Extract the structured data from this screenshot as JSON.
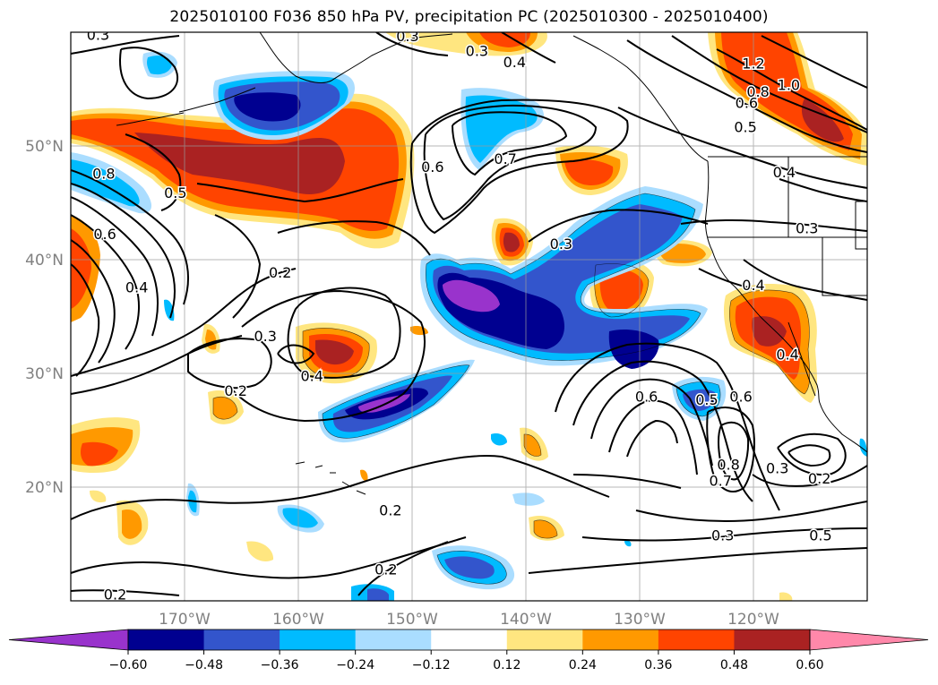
{
  "title": "2025010100 F036 850 hPa PV, precipitation PC (2025010300 - 2025010400)",
  "map": {
    "projection": "PlateCarree",
    "lon_range": [
      -180,
      -110
    ],
    "lat_range": [
      10,
      60
    ],
    "gridlines": true,
    "coastlines": true,
    "land_color": "#ffffff"
  },
  "lat_labels": [
    {
      "lat": 50,
      "text": "50°N"
    },
    {
      "lat": 40,
      "text": "40°N"
    },
    {
      "lat": 30,
      "text": "30°N"
    },
    {
      "lat": 20,
      "text": "20°N"
    }
  ],
  "lon_labels": [
    {
      "lon": -170,
      "text": "170°W"
    },
    {
      "lon": -160,
      "text": "160°W"
    },
    {
      "lon": -150,
      "text": "150°W"
    },
    {
      "lon": -140,
      "text": "140°W"
    },
    {
      "lon": -130,
      "text": "130°W"
    },
    {
      "lon": -120,
      "text": "120°W"
    }
  ],
  "colorbar": {
    "levels": [
      "−0.60",
      "−0.48",
      "−0.36",
      "−0.24",
      "−0.12",
      "0.12",
      "0.24",
      "0.36",
      "0.48",
      "0.60"
    ],
    "colors": [
      "#9933cc",
      "#000090",
      "#3355cc",
      "#00bbff",
      "#aaddff",
      "#ffffff",
      "#ffe680",
      "#ff9900",
      "#ff4400",
      "#aa2222",
      "#ff88aa"
    ],
    "extend": "both"
  },
  "contour_labels": [
    {
      "text": "0.3",
      "lon": -144.3,
      "lat": 58.4
    },
    {
      "text": "0.4",
      "lon": -141.0,
      "lat": 57.4
    },
    {
      "text": "1.2",
      "lon": -120.0,
      "lat": 57.3
    },
    {
      "text": "1.0",
      "lon": -116.9,
      "lat": 55.4
    },
    {
      "text": "0.8",
      "lon": -119.6,
      "lat": 54.8
    },
    {
      "text": "0.6",
      "lon": -120.6,
      "lat": 53.8
    },
    {
      "text": "0.5",
      "lon": -120.7,
      "lat": 51.7
    },
    {
      "text": "0.7",
      "lon": -141.8,
      "lat": 48.9
    },
    {
      "text": "0.6",
      "lon": -148.2,
      "lat": 48.2
    },
    {
      "text": "0.8",
      "lon": -177.1,
      "lat": 47.6
    },
    {
      "text": "0.5",
      "lon": -170.8,
      "lat": 45.9
    },
    {
      "text": "0.4",
      "lon": -117.3,
      "lat": 47.7
    },
    {
      "text": "0.3",
      "lon": -115.3,
      "lat": 42.8
    },
    {
      "text": "0.6",
      "lon": -177.0,
      "lat": 42.3
    },
    {
      "text": "0.3",
      "lon": -136.9,
      "lat": 41.4
    },
    {
      "text": "0.2",
      "lon": -161.6,
      "lat": 38.9
    },
    {
      "text": "0.4",
      "lon": -174.2,
      "lat": 37.6
    },
    {
      "text": "0.4",
      "lon": -120.0,
      "lat": 37.8
    },
    {
      "text": "0.3",
      "lon": -162.9,
      "lat": 33.3
    },
    {
      "text": "0.4",
      "lon": -158.8,
      "lat": 29.8
    },
    {
      "text": "0.2",
      "lon": -165.5,
      "lat": 28.5
    },
    {
      "text": "0.4",
      "lon": -117.0,
      "lat": 31.7
    },
    {
      "text": "0.6",
      "lon": -129.4,
      "lat": 28.0
    },
    {
      "text": "0.5",
      "lon": -124.1,
      "lat": 27.7
    },
    {
      "text": "0.6",
      "lon": -121.1,
      "lat": 28.0
    },
    {
      "text": "0.8",
      "lon": -122.2,
      "lat": 22.0
    },
    {
      "text": "0.7",
      "lon": -122.9,
      "lat": 20.6
    },
    {
      "text": "0.3",
      "lon": -117.9,
      "lat": 21.7
    },
    {
      "text": "0.2",
      "lon": -114.2,
      "lat": 20.8
    },
    {
      "text": "0.5",
      "lon": -114.1,
      "lat": 15.8
    },
    {
      "text": "0.3",
      "lon": -122.7,
      "lat": 15.8
    },
    {
      "text": "0.2",
      "lon": -151.9,
      "lat": 18.0
    },
    {
      "text": "0.2",
      "lon": -152.3,
      "lat": 12.8
    },
    {
      "text": "0.2",
      "lon": -176.1,
      "lat": 10.6
    },
    {
      "text": "0.3",
      "lon": -177.6,
      "lat": 59.8
    },
    {
      "text": "0.3",
      "lon": -150.4,
      "lat": 59.7
    }
  ]
}
